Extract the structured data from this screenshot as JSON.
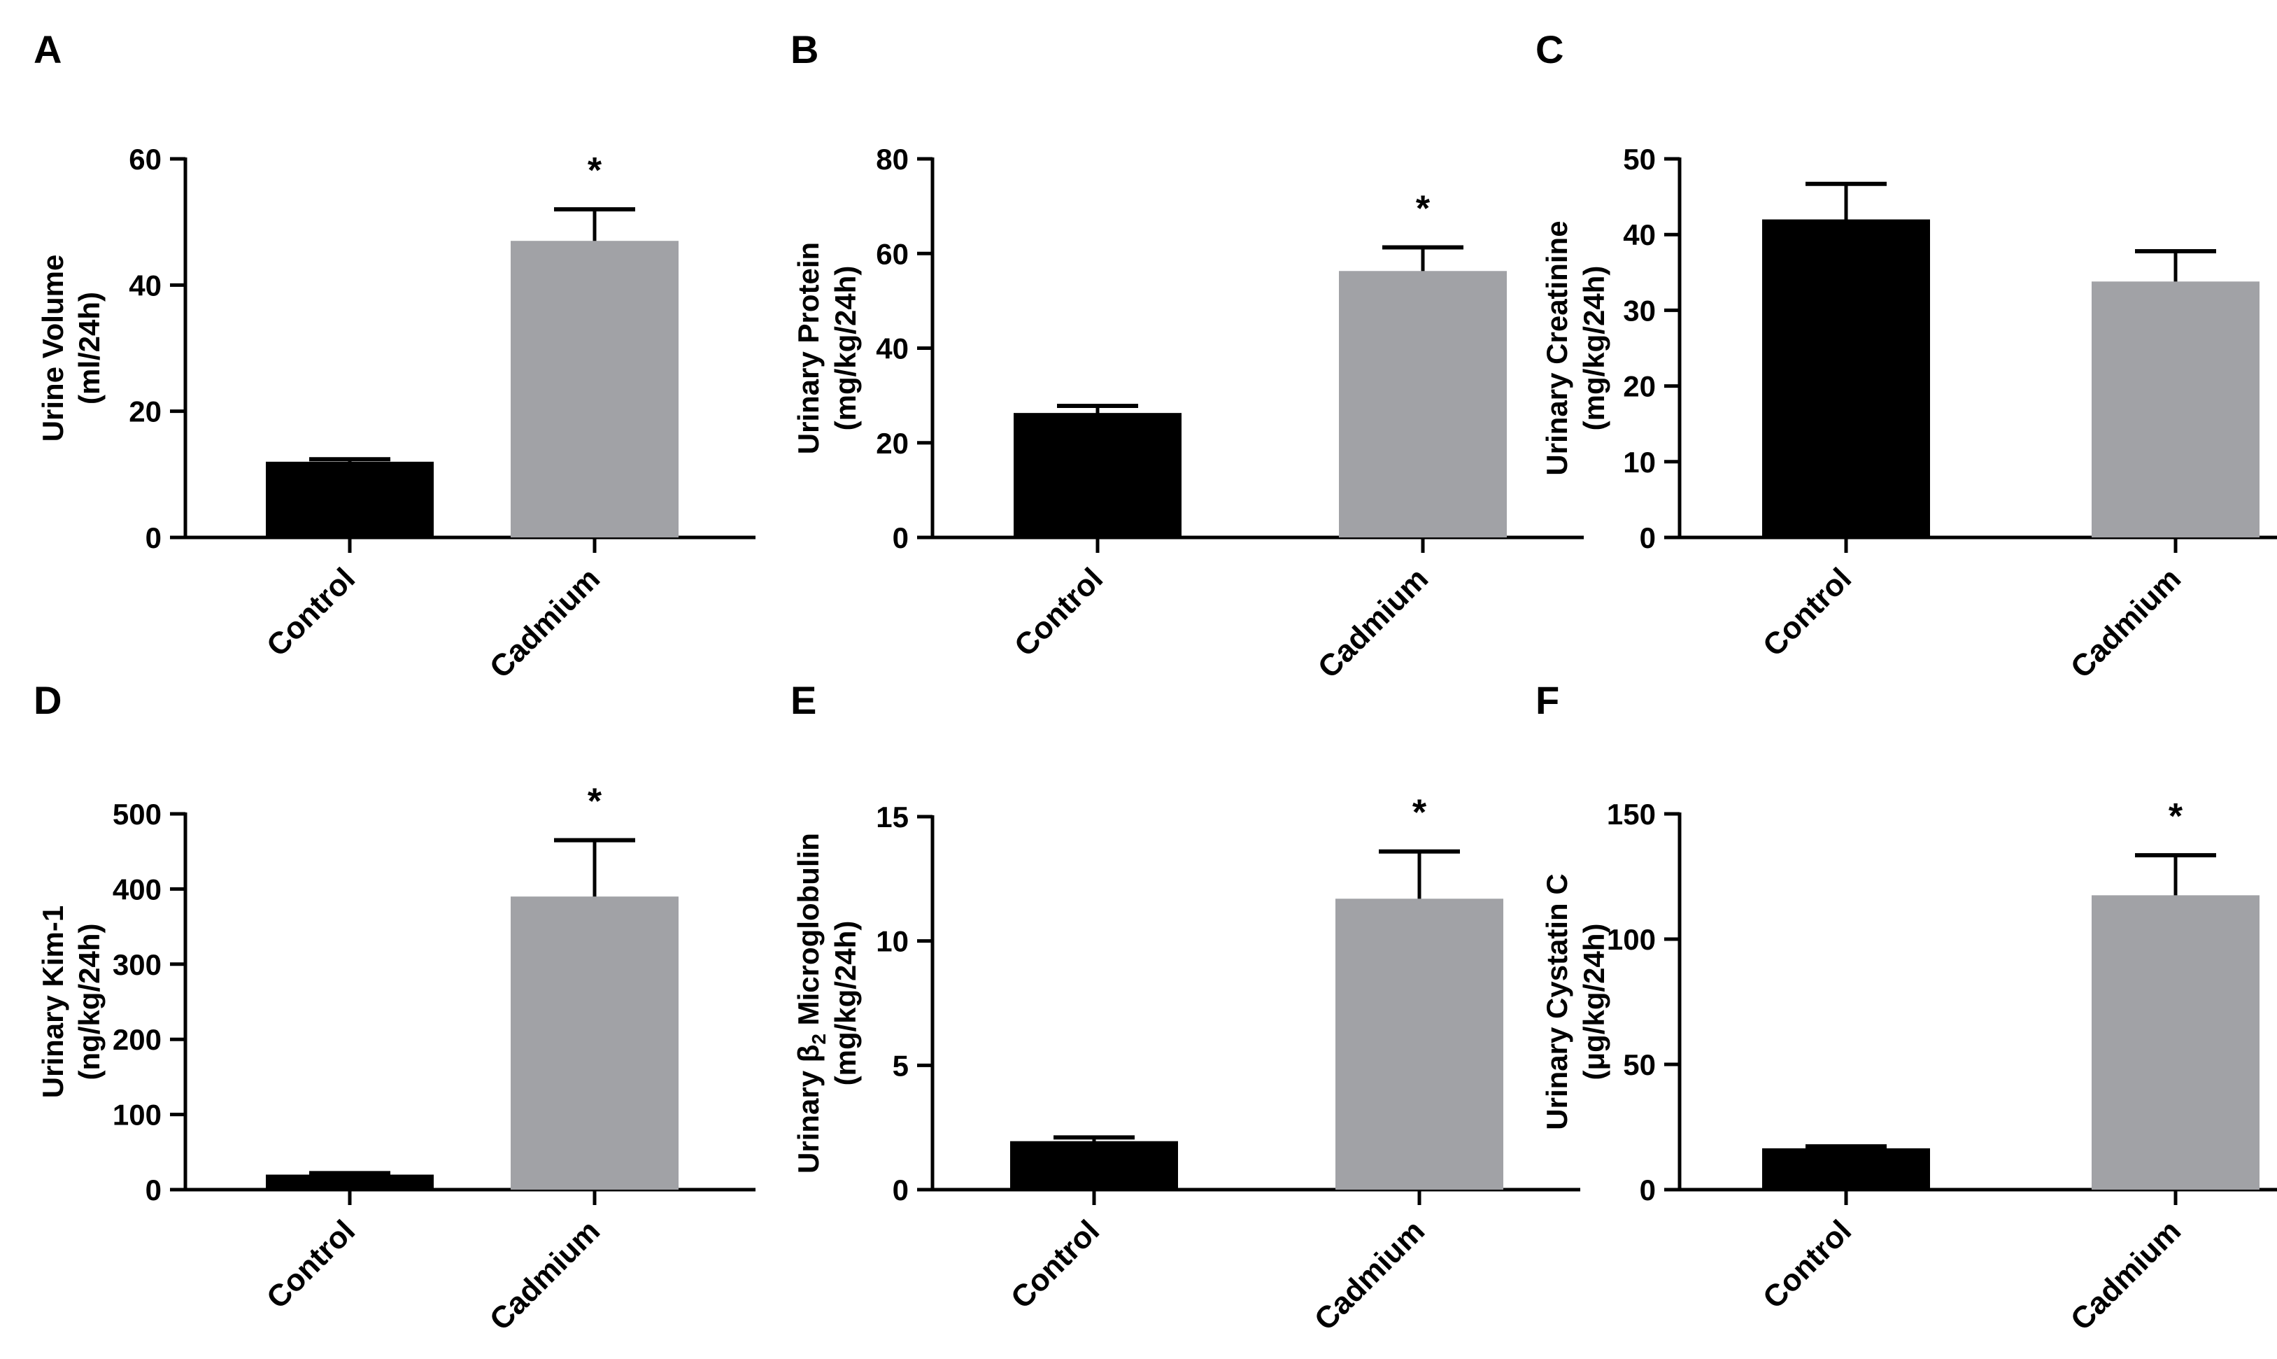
{
  "chart_data": [
    {
      "panel": "A",
      "type": "bar",
      "categories": [
        "Control",
        "Cadmium"
      ],
      "values": [
        12,
        47
      ],
      "errors": [
        0.4,
        5
      ],
      "significance": [
        "",
        "*"
      ],
      "ylabel": [
        "Urine Volume",
        "(ml/24h)"
      ],
      "ylim": [
        0,
        60
      ],
      "yticks": [
        0,
        20,
        40,
        60
      ],
      "colors": [
        "#000000",
        "#a1a2a6"
      ]
    },
    {
      "panel": "B",
      "type": "bar",
      "categories": [
        "Control",
        "Cadmium"
      ],
      "values": [
        26.3,
        56.3
      ],
      "errors": [
        1.5,
        5
      ],
      "significance": [
        "",
        "*"
      ],
      "ylabel": [
        "Urinary Protein",
        "(mg/kg/24h)"
      ],
      "ylim": [
        0,
        80
      ],
      "yticks": [
        0,
        20,
        40,
        60,
        80
      ],
      "colors": [
        "#000000",
        "#a1a2a6"
      ]
    },
    {
      "panel": "C",
      "type": "bar",
      "categories": [
        "Control",
        "Cadmium"
      ],
      "values": [
        42,
        33.8
      ],
      "errors": [
        4.7,
        4
      ],
      "significance": [
        "",
        ""
      ],
      "ylabel": [
        "Urinary Creatinine",
        "(mg/kg/24h)"
      ],
      "ylim": [
        0,
        50
      ],
      "yticks": [
        0,
        10,
        20,
        30,
        40,
        50
      ],
      "colors": [
        "#000000",
        "#a1a2a6"
      ]
    },
    {
      "panel": "D",
      "type": "bar",
      "categories": [
        "Control",
        "Cadmium"
      ],
      "values": [
        20,
        390
      ],
      "errors": [
        2,
        75
      ],
      "significance": [
        "",
        "*"
      ],
      "ylabel": [
        "Urinary Kim-1",
        "(ng/kg/24h)"
      ],
      "ylim": [
        0,
        500
      ],
      "yticks": [
        0,
        100,
        200,
        300,
        400,
        500
      ],
      "colors": [
        "#000000",
        "#a1a2a6"
      ]
    },
    {
      "panel": "E",
      "type": "bar",
      "categories": [
        "Control",
        "Cadmium"
      ],
      "values": [
        1.95,
        11.7
      ],
      "errors": [
        0.15,
        1.9
      ],
      "significance": [
        "",
        "*"
      ],
      "ylabel_parts": [
        "Urinary β",
        "2",
        " Microglobulin"
      ],
      "ylabel": [
        "Urinary β2 Microglobulin",
        "(mg/kg/24h)"
      ],
      "ylim": [
        0,
        15
      ],
      "yticks": [
        0,
        5,
        10,
        15
      ],
      "colors": [
        "#000000",
        "#a1a2a6"
      ]
    },
    {
      "panel": "F",
      "type": "bar",
      "categories": [
        "Control",
        "Cadmium"
      ],
      "values": [
        16.5,
        117.5
      ],
      "errors": [
        0.8,
        16
      ],
      "significance": [
        "",
        "*"
      ],
      "ylabel": [
        "Urinary Cystatin C",
        "(μg/kg/24h)"
      ],
      "ylim": [
        0,
        150
      ],
      "yticks": [
        0,
        50,
        100,
        150
      ],
      "colors": [
        "#000000",
        "#a1a2a6"
      ]
    }
  ]
}
